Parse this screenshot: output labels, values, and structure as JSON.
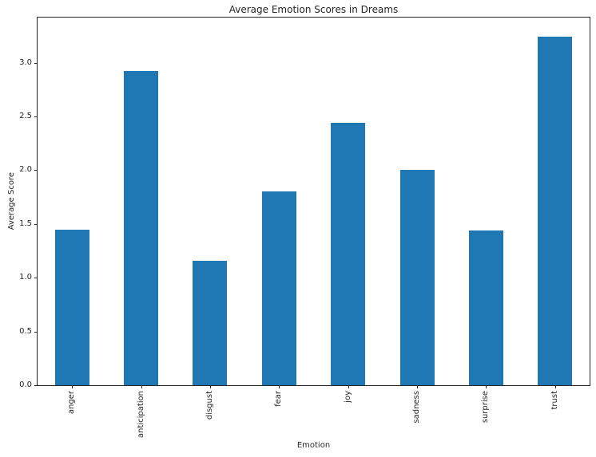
{
  "chart_data": {
    "type": "bar",
    "title": "Average Emotion Scores in Dreams",
    "xlabel": "Emotion",
    "ylabel": "Average Score",
    "categories": [
      "anger",
      "anticipation",
      "disgust",
      "fear",
      "joy",
      "sadness",
      "surprise",
      "trust"
    ],
    "values": [
      1.45,
      2.92,
      1.16,
      1.8,
      2.44,
      2.0,
      1.44,
      3.24
    ],
    "ylim": [
      0,
      3.42
    ],
    "ytick_labels": [
      "0.0",
      "0.5",
      "1.0",
      "1.5",
      "2.0",
      "2.5",
      "3.0"
    ],
    "grid": false,
    "legend_visible": false,
    "bar_color": "#1f77b4",
    "text_color": "#262626",
    "axis_color": "#262626",
    "background_color": "#ffffff",
    "bar_width_fraction": 0.5,
    "xtick_rotation_degrees": 90
  }
}
